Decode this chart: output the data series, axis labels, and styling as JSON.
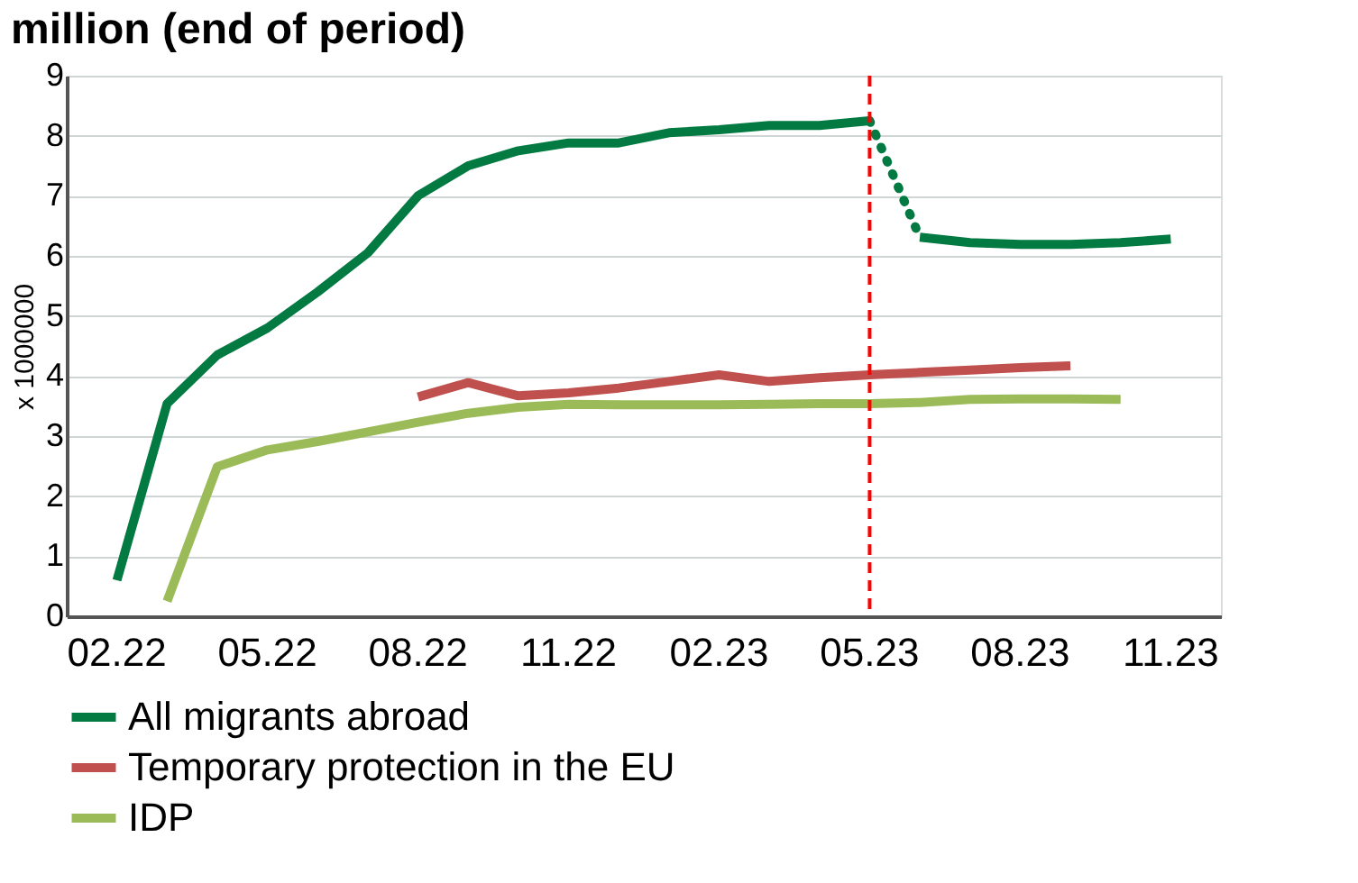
{
  "chart_data": {
    "type": "line",
    "title": "million (end of period)",
    "ylabel": "x 1000000",
    "categories": [
      "02.22",
      null,
      null,
      "05.22",
      null,
      null,
      "08.22",
      null,
      null,
      "11.22",
      null,
      null,
      "02.23",
      null,
      null,
      "05.23",
      null,
      null,
      "08.23",
      null,
      null,
      "11.23"
    ],
    "series": [
      {
        "name": "All migrants abroad",
        "color": "#037a42",
        "line_style": "solid",
        "values": [
          0.6,
          3.54,
          4.35,
          4.8,
          5.4,
          6.05,
          7.0,
          7.5,
          7.75,
          7.88,
          7.88,
          8.05,
          8.1,
          8.17,
          8.17,
          8.25,
          null,
          null,
          null,
          null,
          null,
          null
        ]
      },
      {
        "color": "#037a42",
        "line_style": "dotted",
        "values": [
          null,
          null,
          null,
          null,
          null,
          null,
          null,
          null,
          null,
          null,
          null,
          null,
          null,
          null,
          null,
          8.25,
          6.31,
          null,
          null,
          null,
          null,
          null
        ]
      },
      {
        "color": "#037a42",
        "line_style": "solid",
        "values": [
          null,
          null,
          null,
          null,
          null,
          null,
          null,
          null,
          null,
          null,
          null,
          null,
          null,
          null,
          null,
          null,
          6.31,
          6.22,
          6.19,
          6.19,
          6.22,
          6.28
        ]
      },
      {
        "name": "Temporary protection in the EU",
        "color": "#c0504d",
        "line_style": "solid",
        "values": [
          null,
          null,
          null,
          null,
          null,
          null,
          3.65,
          3.89,
          3.67,
          3.72,
          3.8,
          3.91,
          4.02,
          3.91,
          3.97,
          4.02,
          4.06,
          4.1,
          4.14,
          4.17,
          null,
          null
        ]
      },
      {
        "name": "IDP",
        "color": "#9bbb59",
        "line_style": "solid",
        "values": [
          null,
          0.25,
          2.49,
          2.77,
          2.91,
          3.07,
          3.23,
          3.38,
          3.48,
          3.53,
          3.52,
          3.52,
          3.52,
          3.53,
          3.54,
          3.54,
          3.56,
          3.61,
          3.62,
          3.62,
          3.61,
          null
        ]
      }
    ],
    "ylim": [
      0,
      9
    ],
    "yticks": [
      0,
      1,
      2,
      3,
      4,
      5,
      6,
      7,
      8,
      9
    ],
    "grid": "y",
    "legend": "bottom",
    "marker": "none",
    "ref_lines": [
      {
        "axis": "x",
        "value": "05.23",
        "color": "#ff0000",
        "line_style": "dashed"
      }
    ]
  }
}
